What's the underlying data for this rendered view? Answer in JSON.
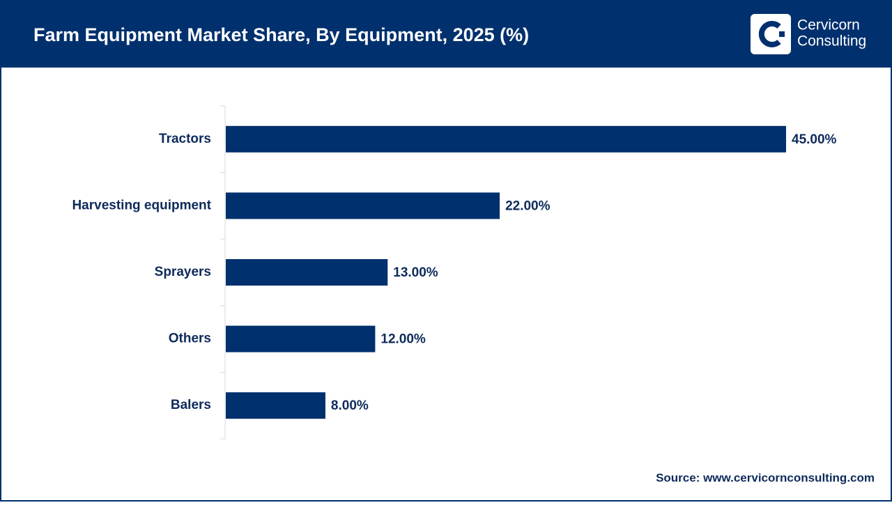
{
  "chart_data": {
    "type": "bar",
    "orientation": "horizontal",
    "title": "Farm Equipment Market Share, By Equipment, 2025 (%)",
    "categories": [
      "Tractors",
      "Harvesting equipment",
      "Sprayers",
      "Others",
      "Balers"
    ],
    "values": [
      45,
      22,
      13,
      12,
      8
    ],
    "value_labels": [
      "45.00%",
      "22.00%",
      "13.00%",
      "12.00%",
      "8.00%"
    ],
    "color": "#00306e",
    "source": "Source: www.cervicornconsulting.com",
    "brand": [
      "Cervicorn",
      "Consulting"
    ]
  }
}
